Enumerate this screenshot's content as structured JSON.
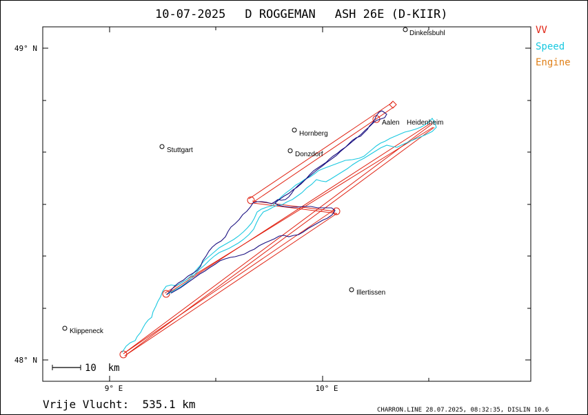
{
  "header": {
    "date": "10-07-2025",
    "pilot": "D ROGGEMAN",
    "glider": "ASH 26E (D-KIIR)"
  },
  "legend": [
    {
      "label": "VV",
      "color": "#e02010"
    },
    {
      "label": "Speed",
      "color": "#18c8e0"
    },
    {
      "label": "Engine",
      "color": "#e08018"
    }
  ],
  "axes": {
    "lat_labels": [
      "49° N",
      "48° N"
    ],
    "lon_labels": [
      "9° E",
      "10° E"
    ]
  },
  "scale_bar": {
    "label": "10  km"
  },
  "places": [
    {
      "name": "Dinkelsbuhl"
    },
    {
      "name": "Aalen"
    },
    {
      "name": "Heidenheim"
    },
    {
      "name": "Hornberg"
    },
    {
      "name": "Stuttgart"
    },
    {
      "name": "Donzdorf"
    },
    {
      "name": "Illertissen"
    },
    {
      "name": "Klippeneck"
    }
  ],
  "footer": {
    "distance": "Vrije Vlucht:  535.1 km",
    "credit": "CHARRON.LINE 28.07.2025, 08:32:35, DISLIN 10.6"
  },
  "colors": {
    "frame": "#000000",
    "task": "#e02010",
    "track_vario": "#1a1080",
    "track_speed": "#18c8e0"
  }
}
